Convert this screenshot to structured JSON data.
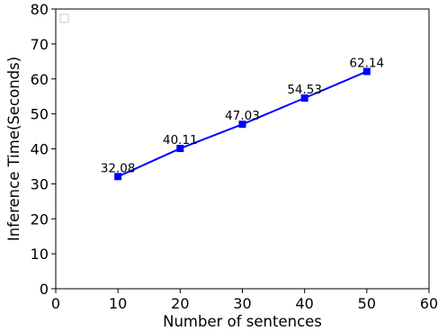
{
  "chart_data": {
    "type": "line",
    "title": "",
    "xlabel": "Number of sentences",
    "ylabel": "Inference Time(Seconds)",
    "xlim": [
      0,
      60
    ],
    "ylim": [
      0,
      80
    ],
    "x_ticks": [
      0,
      10,
      20,
      30,
      40,
      50,
      60
    ],
    "y_ticks": [
      0,
      10,
      20,
      30,
      40,
      50,
      60,
      70,
      80
    ],
    "grid": false,
    "legend": {
      "placement": "top-left",
      "entries": [
        ""
      ]
    },
    "series": [
      {
        "x": [
          10,
          20,
          30,
          40,
          50
        ],
        "values": [
          32.08,
          40.11,
          47.03,
          54.53,
          62.14
        ],
        "labels": [
          "32.08",
          "40.11",
          "47.03",
          "54.53",
          "62.14"
        ],
        "color": "#0000ff",
        "marker": "square"
      }
    ]
  }
}
